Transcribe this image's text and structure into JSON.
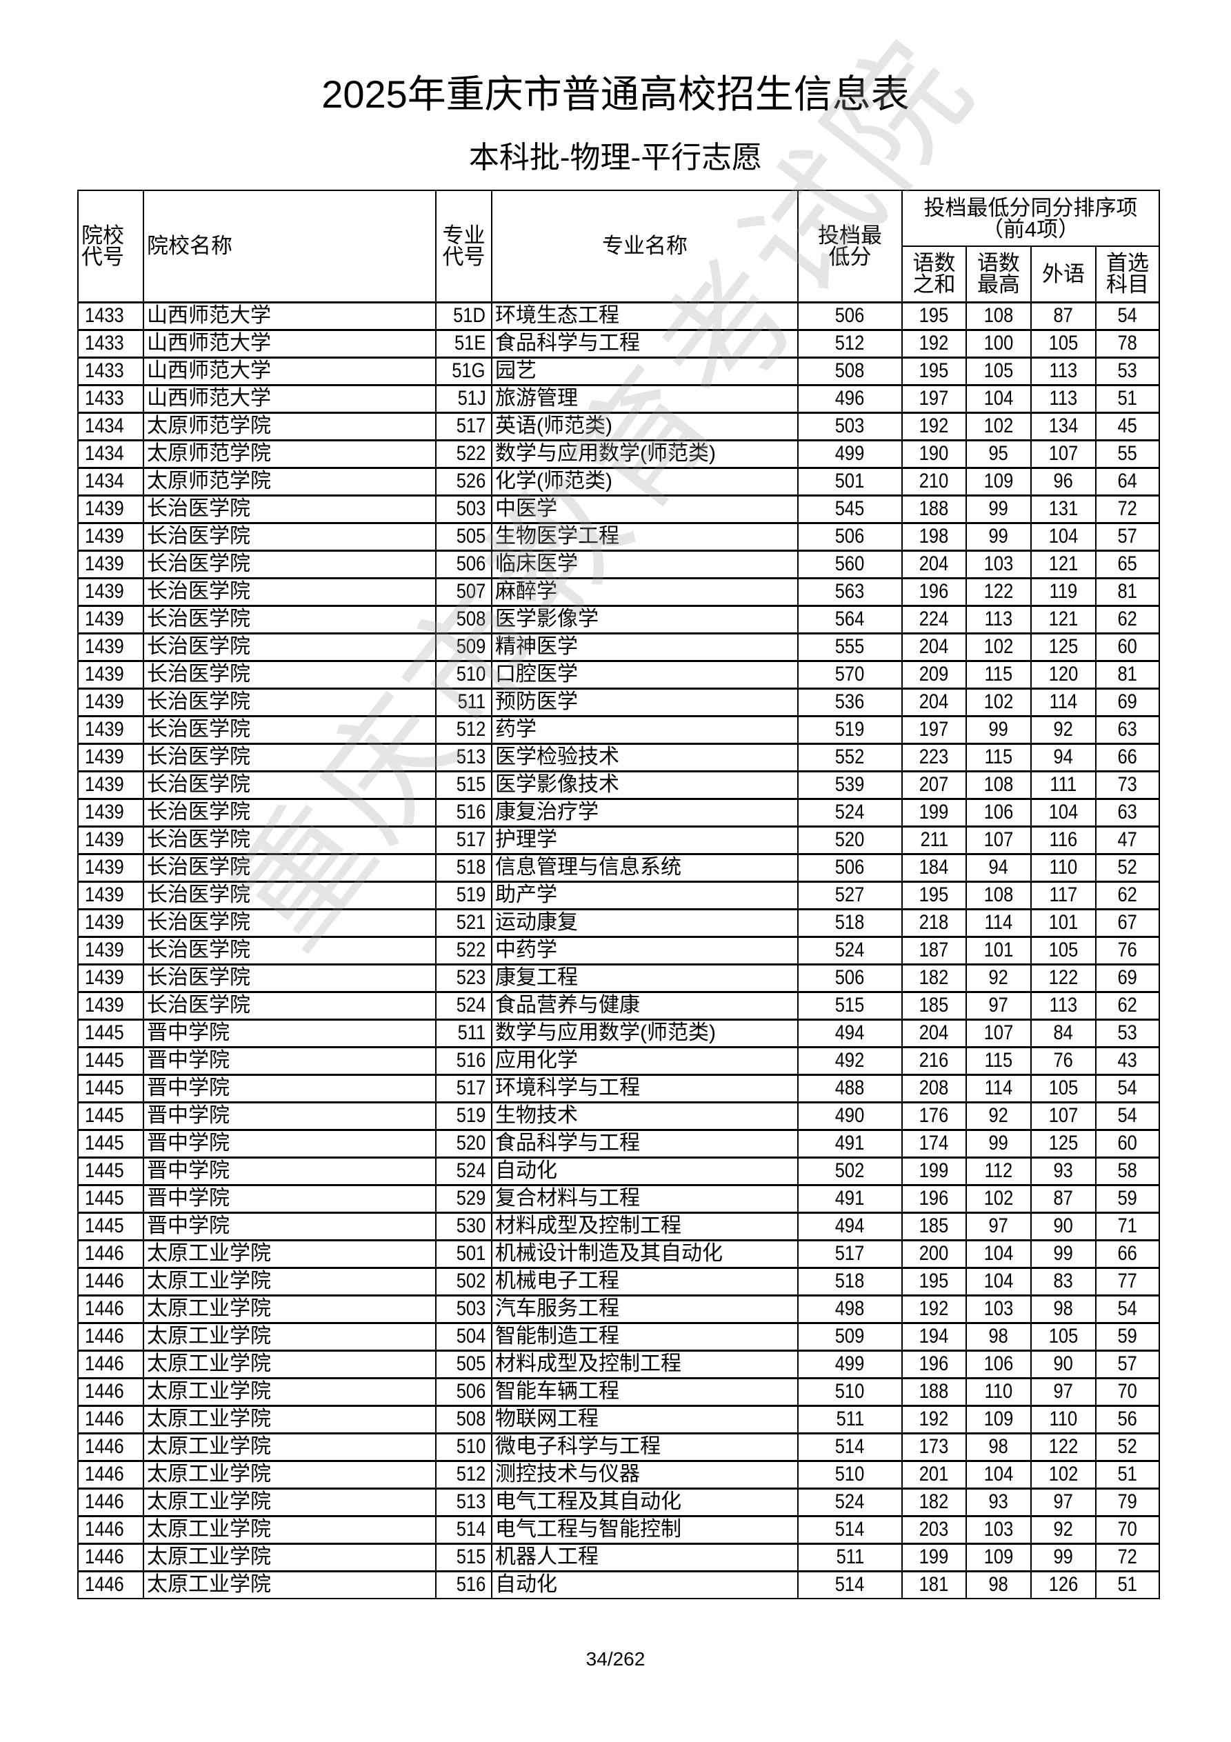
{
  "title": "2025年重庆市普通高校招生信息表",
  "subtitle": "本科批-物理-平行志愿",
  "watermark": "重庆市教育考试院",
  "headers": {
    "school_code": "院校代号",
    "school_name": "院校名称",
    "major_code": "专业代号",
    "major_name": "专业名称",
    "min_score": "投档最低分",
    "tiebreak_group": "投档最低分同分排序项（前4项）",
    "tiebreak": [
      "语数之和",
      "语数最高",
      "外语",
      "首选科目"
    ]
  },
  "rows": [
    [
      "1433",
      "山西师范大学",
      "51D",
      "环境生态工程",
      "506",
      "195",
      "108",
      "87",
      "54"
    ],
    [
      "1433",
      "山西师范大学",
      "51E",
      "食品科学与工程",
      "512",
      "192",
      "100",
      "105",
      "78"
    ],
    [
      "1433",
      "山西师范大学",
      "51G",
      "园艺",
      "508",
      "195",
      "105",
      "113",
      "53"
    ],
    [
      "1433",
      "山西师范大学",
      "51J",
      "旅游管理",
      "496",
      "197",
      "104",
      "113",
      "51"
    ],
    [
      "1434",
      "太原师范学院",
      "517",
      "英语(师范类)",
      "503",
      "192",
      "102",
      "134",
      "45"
    ],
    [
      "1434",
      "太原师范学院",
      "522",
      "数学与应用数学(师范类)",
      "499",
      "190",
      "95",
      "107",
      "55"
    ],
    [
      "1434",
      "太原师范学院",
      "526",
      "化学(师范类)",
      "501",
      "210",
      "109",
      "96",
      "64"
    ],
    [
      "1439",
      "长治医学院",
      "503",
      "中医学",
      "545",
      "188",
      "99",
      "131",
      "72"
    ],
    [
      "1439",
      "长治医学院",
      "505",
      "生物医学工程",
      "506",
      "198",
      "99",
      "104",
      "57"
    ],
    [
      "1439",
      "长治医学院",
      "506",
      "临床医学",
      "560",
      "204",
      "103",
      "121",
      "65"
    ],
    [
      "1439",
      "长治医学院",
      "507",
      "麻醉学",
      "563",
      "196",
      "122",
      "119",
      "81"
    ],
    [
      "1439",
      "长治医学院",
      "508",
      "医学影像学",
      "564",
      "224",
      "113",
      "121",
      "62"
    ],
    [
      "1439",
      "长治医学院",
      "509",
      "精神医学",
      "555",
      "204",
      "102",
      "125",
      "60"
    ],
    [
      "1439",
      "长治医学院",
      "510",
      "口腔医学",
      "570",
      "209",
      "115",
      "120",
      "81"
    ],
    [
      "1439",
      "长治医学院",
      "511",
      "预防医学",
      "536",
      "204",
      "102",
      "114",
      "69"
    ],
    [
      "1439",
      "长治医学院",
      "512",
      "药学",
      "519",
      "197",
      "99",
      "92",
      "63"
    ],
    [
      "1439",
      "长治医学院",
      "513",
      "医学检验技术",
      "552",
      "223",
      "115",
      "94",
      "66"
    ],
    [
      "1439",
      "长治医学院",
      "515",
      "医学影像技术",
      "539",
      "207",
      "108",
      "111",
      "73"
    ],
    [
      "1439",
      "长治医学院",
      "516",
      "康复治疗学",
      "524",
      "199",
      "106",
      "104",
      "63"
    ],
    [
      "1439",
      "长治医学院",
      "517",
      "护理学",
      "520",
      "211",
      "107",
      "116",
      "47"
    ],
    [
      "1439",
      "长治医学院",
      "518",
      "信息管理与信息系统",
      "506",
      "184",
      "94",
      "110",
      "52"
    ],
    [
      "1439",
      "长治医学院",
      "519",
      "助产学",
      "527",
      "195",
      "108",
      "117",
      "62"
    ],
    [
      "1439",
      "长治医学院",
      "521",
      "运动康复",
      "518",
      "218",
      "114",
      "101",
      "67"
    ],
    [
      "1439",
      "长治医学院",
      "522",
      "中药学",
      "524",
      "187",
      "101",
      "105",
      "76"
    ],
    [
      "1439",
      "长治医学院",
      "523",
      "康复工程",
      "506",
      "182",
      "92",
      "122",
      "69"
    ],
    [
      "1439",
      "长治医学院",
      "524",
      "食品营养与健康",
      "515",
      "185",
      "97",
      "113",
      "62"
    ],
    [
      "1445",
      "晋中学院",
      "511",
      "数学与应用数学(师范类)",
      "494",
      "204",
      "107",
      "84",
      "53"
    ],
    [
      "1445",
      "晋中学院",
      "516",
      "应用化学",
      "492",
      "216",
      "115",
      "76",
      "43"
    ],
    [
      "1445",
      "晋中学院",
      "517",
      "环境科学与工程",
      "488",
      "208",
      "114",
      "105",
      "54"
    ],
    [
      "1445",
      "晋中学院",
      "519",
      "生物技术",
      "490",
      "176",
      "92",
      "107",
      "54"
    ],
    [
      "1445",
      "晋中学院",
      "520",
      "食品科学与工程",
      "491",
      "174",
      "99",
      "125",
      "60"
    ],
    [
      "1445",
      "晋中学院",
      "524",
      "自动化",
      "502",
      "199",
      "112",
      "93",
      "58"
    ],
    [
      "1445",
      "晋中学院",
      "529",
      "复合材料与工程",
      "491",
      "196",
      "102",
      "87",
      "59"
    ],
    [
      "1445",
      "晋中学院",
      "530",
      "材料成型及控制工程",
      "494",
      "185",
      "97",
      "90",
      "71"
    ],
    [
      "1446",
      "太原工业学院",
      "501",
      "机械设计制造及其自动化",
      "517",
      "200",
      "104",
      "99",
      "66"
    ],
    [
      "1446",
      "太原工业学院",
      "502",
      "机械电子工程",
      "518",
      "195",
      "104",
      "83",
      "77"
    ],
    [
      "1446",
      "太原工业学院",
      "503",
      "汽车服务工程",
      "498",
      "192",
      "103",
      "98",
      "54"
    ],
    [
      "1446",
      "太原工业学院",
      "504",
      "智能制造工程",
      "509",
      "194",
      "98",
      "105",
      "59"
    ],
    [
      "1446",
      "太原工业学院",
      "505",
      "材料成型及控制工程",
      "499",
      "196",
      "106",
      "90",
      "57"
    ],
    [
      "1446",
      "太原工业学院",
      "506",
      "智能车辆工程",
      "510",
      "188",
      "110",
      "97",
      "70"
    ],
    [
      "1446",
      "太原工业学院",
      "508",
      "物联网工程",
      "511",
      "192",
      "109",
      "110",
      "56"
    ],
    [
      "1446",
      "太原工业学院",
      "510",
      "微电子科学与工程",
      "514",
      "173",
      "98",
      "122",
      "52"
    ],
    [
      "1446",
      "太原工业学院",
      "512",
      "测控技术与仪器",
      "510",
      "201",
      "104",
      "102",
      "51"
    ],
    [
      "1446",
      "太原工业学院",
      "513",
      "电气工程及其自动化",
      "524",
      "182",
      "93",
      "97",
      "79"
    ],
    [
      "1446",
      "太原工业学院",
      "514",
      "电气工程与智能控制",
      "514",
      "203",
      "103",
      "92",
      "70"
    ],
    [
      "1446",
      "太原工业学院",
      "515",
      "机器人工程",
      "511",
      "199",
      "109",
      "99",
      "72"
    ],
    [
      "1446",
      "太原工业学院",
      "516",
      "自动化",
      "514",
      "181",
      "98",
      "126",
      "51"
    ]
  ],
  "footer": {
    "page": "34/262"
  }
}
